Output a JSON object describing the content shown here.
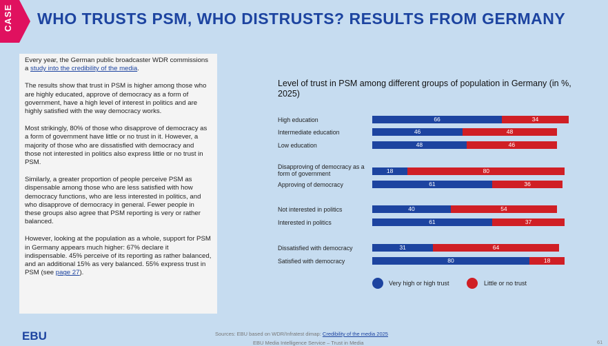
{
  "case_label": "CASE",
  "title": "WHO TRUSTS PSM, WHO DISTRUSTS? RESULTS FROM GERMANY",
  "text": {
    "p1_before": "Every year, the German public broadcaster WDR commissions a ",
    "p1_link": "study into the credibility of the media",
    "p1_after": ".",
    "p2": "The results show that trust in PSM is higher among those who are highly educated, approve of democracy as a form of government, have a high level of interest in politics and are highly satisfied with the way democracy works.",
    "p3": "Most strikingly, 80% of those who disapprove of democracy as a form of government have little or no trust in it. However, a majority of those who are dissatisfied with democracy and those not interested in politics also express little or no trust in PSM.",
    "p4": "Similarly, a greater proportion of people perceive PSM as dispensable among those who are less satisfied with how democracy functions, who are less interested in politics, and who disapprove of democracy in general. Fewer people in these groups also agree that PSM reporting is very or rather balanced.",
    "p5_before": "However, looking at the population as a whole, support for PSM in Germany appears much higher: 67% declare it indispensable. 45% perceive of its reporting as rather balanced, and an additional 15% as very balanced. 55% express trust in PSM (see ",
    "p5_link": "page 27",
    "p5_after": ")."
  },
  "chart_data": {
    "type": "bar",
    "stacked": true,
    "orientation": "horizontal",
    "title": "Level of trust in PSM among different groups of population in Germany (in %, 2025)",
    "categories": [
      "High education",
      "Intermediate education",
      "Low education",
      "Disapproving of democracy as a form of government",
      "Approving of democracy",
      "Not interested in politics",
      "Interested in politics",
      "Dissatisfied with democracy",
      "Satisfied with democracy"
    ],
    "series": [
      {
        "name": "Very high or high trust",
        "color": "#1d44a0",
        "values": [
          66,
          46,
          48,
          18,
          61,
          40,
          61,
          31,
          80
        ]
      },
      {
        "name": "Little or no trust",
        "color": "#d01f25",
        "values": [
          34,
          48,
          46,
          80,
          36,
          54,
          37,
          64,
          18
        ]
      }
    ],
    "legend": "bottom"
  },
  "footer": {
    "source_prefix": "Sources: EBU based on WDR/Infratest dimap: ",
    "source_link": "Credibility of the media 2025",
    "service": "EBU Media Intelligence Service – Trust in Media",
    "logo": "EBU",
    "page": "61"
  }
}
